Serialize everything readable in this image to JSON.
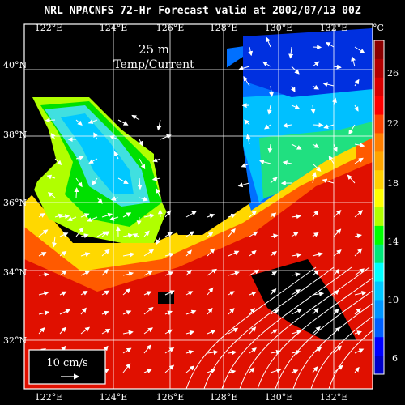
{
  "title": "NRL NPACNFS 72-Hr Forecast valid at 2002/07/13 00Z",
  "depth_label": "25 m",
  "field_label": "Temp/Current",
  "scale_label": "10 cm/s",
  "lon_labels": [
    "122°E",
    "124°E",
    "126°E",
    "128°E",
    "130°E",
    "132°E"
  ],
  "lat_labels": [
    "40°N",
    "38°N",
    "36°N",
    "34°N",
    "32°N"
  ],
  "colorbar": {
    "unit": "°C",
    "ticks": [
      "26",
      "22",
      "18",
      "14",
      "10",
      "6"
    ],
    "colors": [
      "#8b0000",
      "#b30000",
      "#d90000",
      "#ff0000",
      "#ff4500",
      "#ff7f00",
      "#ffa500",
      "#ffd000",
      "#ffff00",
      "#b0ff00",
      "#00ff00",
      "#00e87a",
      "#00ffff",
      "#00c8ff",
      "#0096ff",
      "#0060ff",
      "#0000ff",
      "#0000c8"
    ]
  },
  "colors": {
    "land": "#000000",
    "grid": "#ffffff",
    "vectors": "#ffffff"
  }
}
